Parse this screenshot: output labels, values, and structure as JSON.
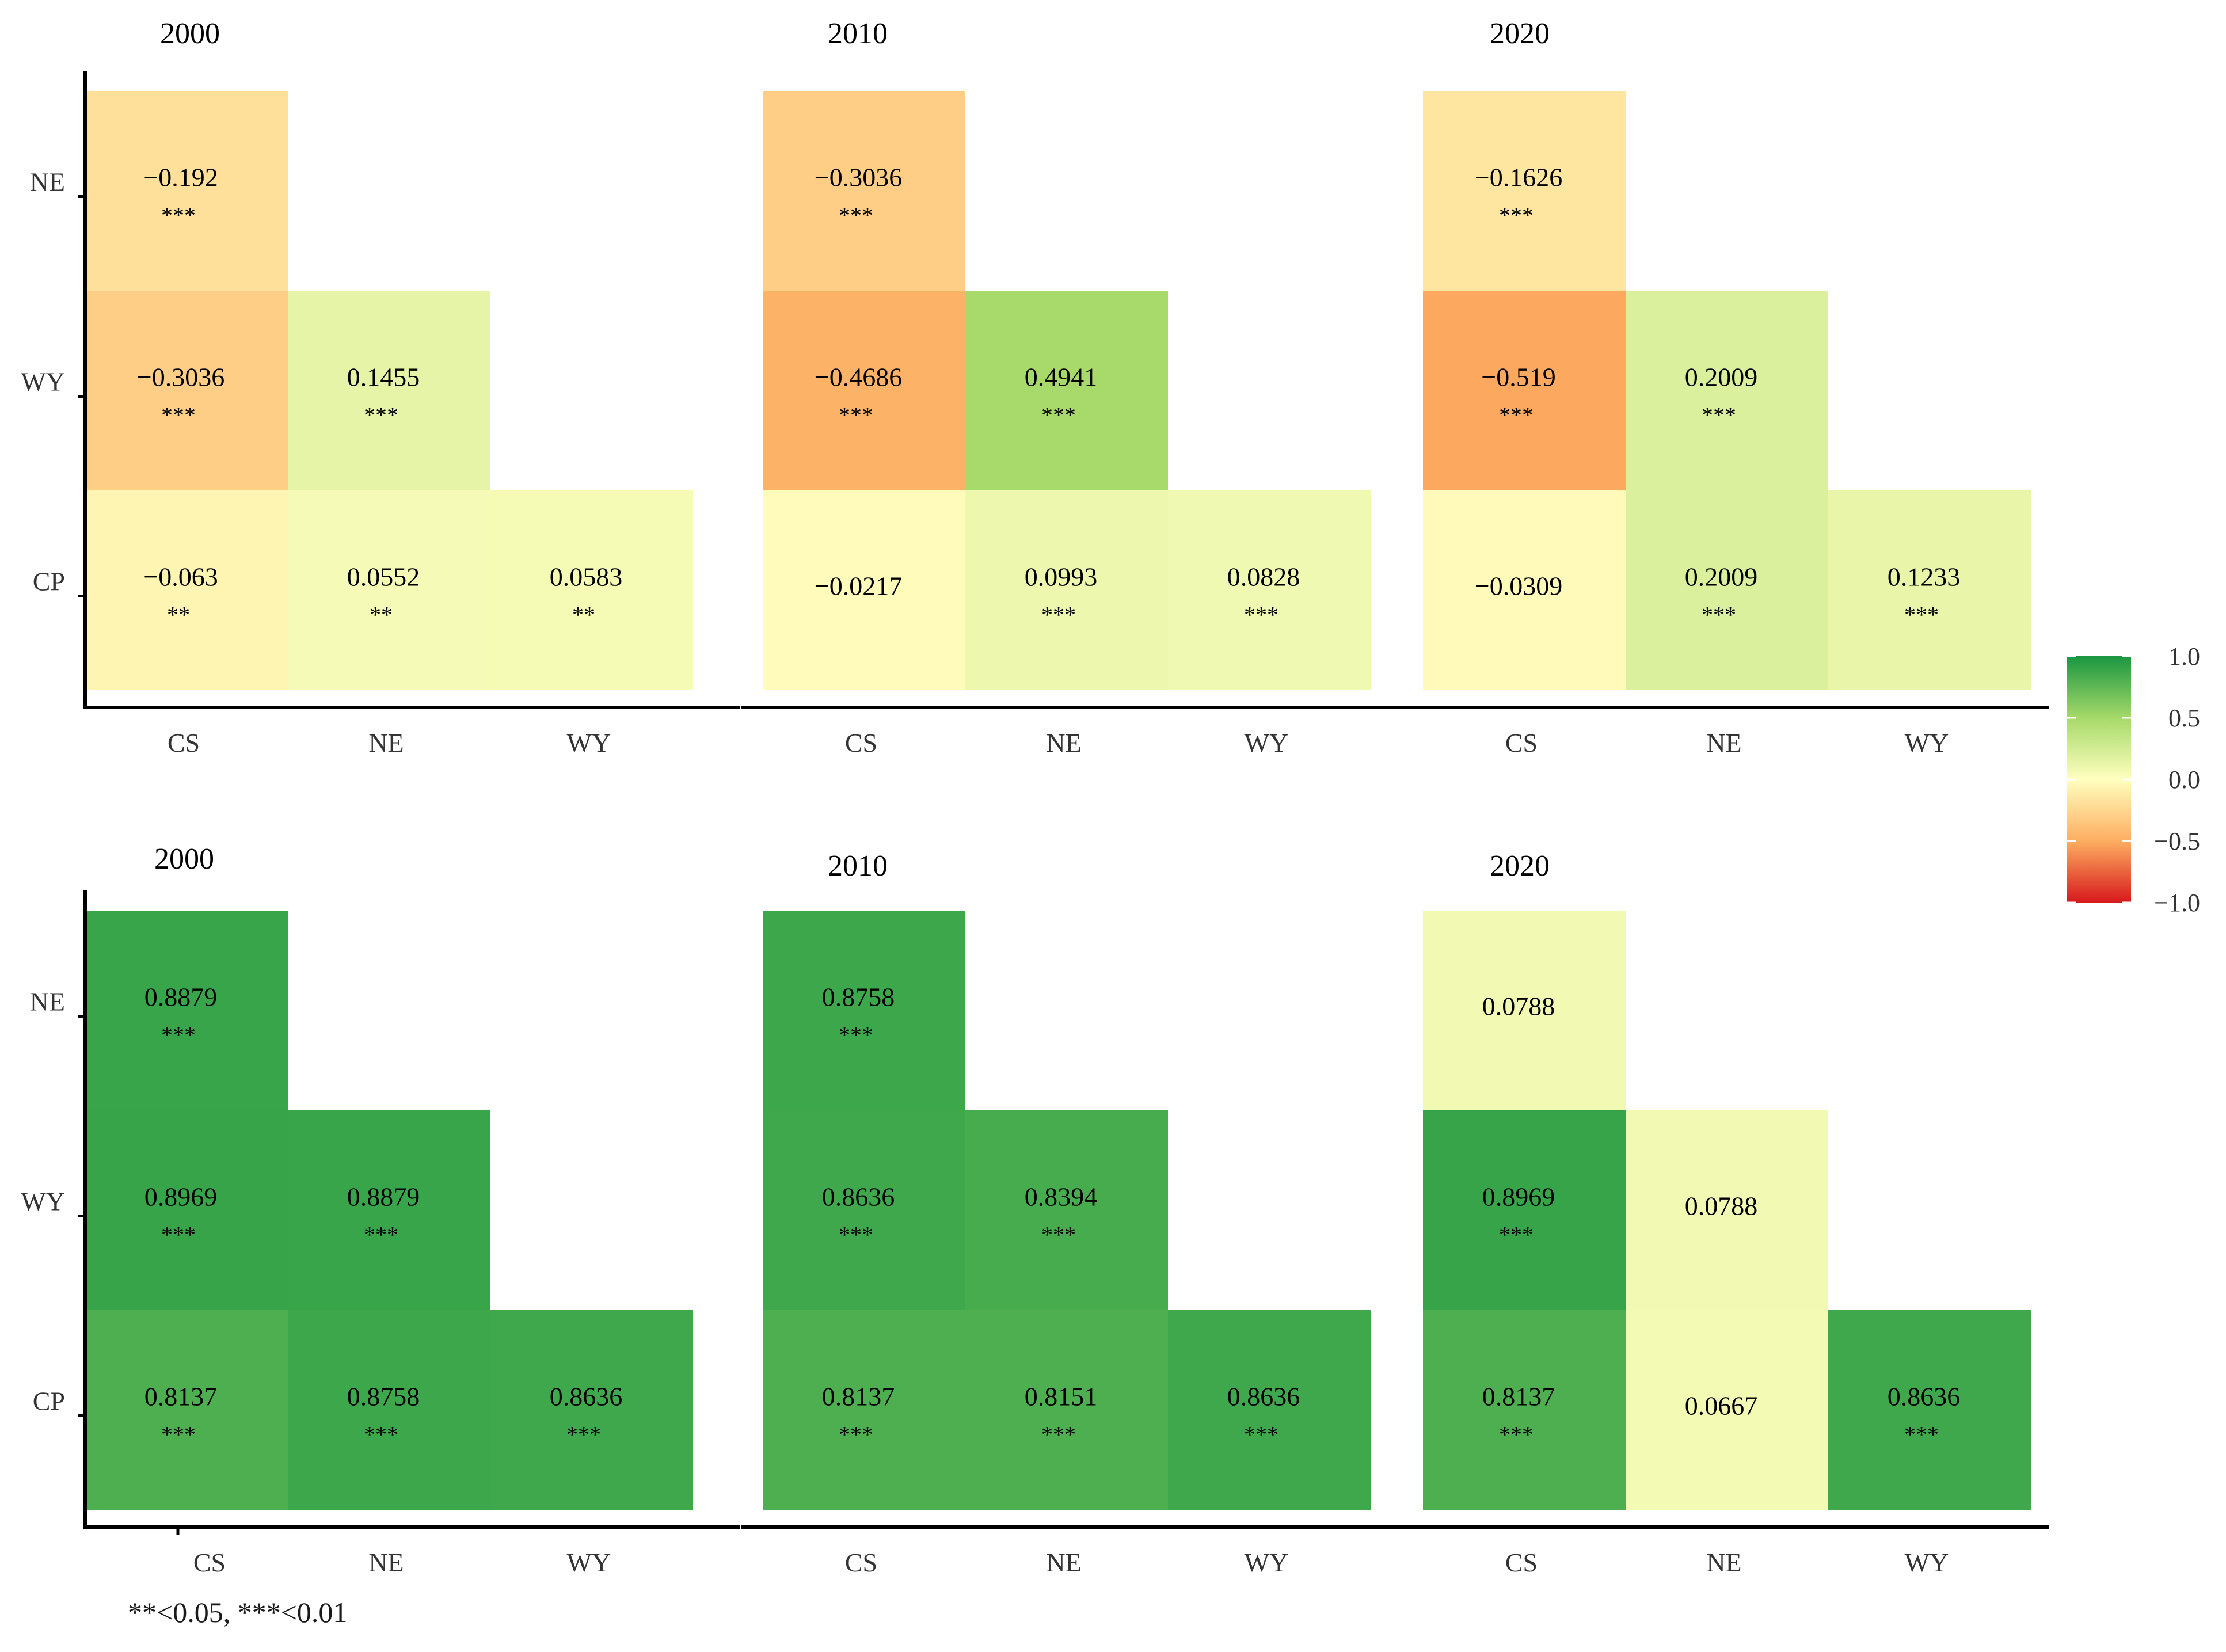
{
  "chart_data": [
    {
      "type": "heatmap",
      "title": "2000",
      "x_categories": [
        "CS",
        "NE",
        "WY"
      ],
      "y_categories": [
        "NE",
        "WY",
        "CP"
      ],
      "cells": [
        {
          "x": "CS",
          "y": "NE",
          "value": -0.192,
          "label": "−0.192",
          "sig": "***"
        },
        {
          "x": "CS",
          "y": "WY",
          "value": -0.3036,
          "label": "−0.3036",
          "sig": "***"
        },
        {
          "x": "NE",
          "y": "WY",
          "value": 0.1455,
          "label": "0.1455",
          "sig": "***"
        },
        {
          "x": "CS",
          "y": "CP",
          "value": -0.063,
          "label": "−0.063",
          "sig": "**"
        },
        {
          "x": "NE",
          "y": "CP",
          "value": 0.0552,
          "label": "0.0552",
          "sig": "**"
        },
        {
          "x": "WY",
          "y": "CP",
          "value": 0.0583,
          "label": "0.0583",
          "sig": "**"
        }
      ]
    },
    {
      "type": "heatmap",
      "title": "2010",
      "x_categories": [
        "CS",
        "NE",
        "WY"
      ],
      "y_categories": [
        "NE",
        "WY",
        "CP"
      ],
      "cells": [
        {
          "x": "CS",
          "y": "NE",
          "value": -0.3036,
          "label": "−0.3036",
          "sig": "***"
        },
        {
          "x": "CS",
          "y": "WY",
          "value": -0.4686,
          "label": "−0.4686",
          "sig": "***"
        },
        {
          "x": "NE",
          "y": "WY",
          "value": 0.4941,
          "label": "0.4941",
          "sig": "***"
        },
        {
          "x": "CS",
          "y": "CP",
          "value": -0.0217,
          "label": "−0.0217",
          "sig": ""
        },
        {
          "x": "NE",
          "y": "CP",
          "value": 0.0993,
          "label": "0.0993",
          "sig": "***"
        },
        {
          "x": "WY",
          "y": "CP",
          "value": 0.0828,
          "label": "0.0828",
          "sig": "***"
        }
      ]
    },
    {
      "type": "heatmap",
      "title": "2020",
      "x_categories": [
        "CS",
        "NE",
        "WY"
      ],
      "y_categories": [
        "NE",
        "WY",
        "CP"
      ],
      "cells": [
        {
          "x": "CS",
          "y": "NE",
          "value": -0.1626,
          "label": "−0.1626",
          "sig": "***"
        },
        {
          "x": "CS",
          "y": "WY",
          "value": -0.519,
          "label": "−0.519",
          "sig": "***"
        },
        {
          "x": "NE",
          "y": "WY",
          "value": 0.2009,
          "label": "0.2009",
          "sig": "***"
        },
        {
          "x": "CS",
          "y": "CP",
          "value": -0.0309,
          "label": "−0.0309",
          "sig": ""
        },
        {
          "x": "NE",
          "y": "CP",
          "value": 0.2009,
          "label": "0.2009",
          "sig": "***"
        },
        {
          "x": "WY",
          "y": "CP",
          "value": 0.1233,
          "label": "0.1233",
          "sig": "***"
        }
      ]
    },
    {
      "type": "heatmap",
      "title": "2000",
      "x_categories": [
        "CS",
        "NE",
        "WY"
      ],
      "y_categories": [
        "NE",
        "WY",
        "CP"
      ],
      "cells": [
        {
          "x": "CS",
          "y": "NE",
          "value": 0.8879,
          "label": "0.8879",
          "sig": "***"
        },
        {
          "x": "CS",
          "y": "WY",
          "value": 0.8969,
          "label": "0.8969",
          "sig": "***"
        },
        {
          "x": "NE",
          "y": "WY",
          "value": 0.8879,
          "label": "0.8879",
          "sig": "***"
        },
        {
          "x": "CS",
          "y": "CP",
          "value": 0.8137,
          "label": "0.8137",
          "sig": "***"
        },
        {
          "x": "NE",
          "y": "CP",
          "value": 0.8758,
          "label": "0.8758",
          "sig": "***"
        },
        {
          "x": "WY",
          "y": "CP",
          "value": 0.8636,
          "label": "0.8636",
          "sig": "***"
        }
      ]
    },
    {
      "type": "heatmap",
      "title": "2010",
      "x_categories": [
        "CS",
        "NE",
        "WY"
      ],
      "y_categories": [
        "NE",
        "WY",
        "CP"
      ],
      "cells": [
        {
          "x": "CS",
          "y": "NE",
          "value": 0.8758,
          "label": "0.8758",
          "sig": "***"
        },
        {
          "x": "CS",
          "y": "WY",
          "value": 0.8636,
          "label": "0.8636",
          "sig": "***"
        },
        {
          "x": "NE",
          "y": "WY",
          "value": 0.8394,
          "label": "0.8394",
          "sig": "***"
        },
        {
          "x": "CS",
          "y": "CP",
          "value": 0.8137,
          "label": "0.8137",
          "sig": "***"
        },
        {
          "x": "NE",
          "y": "CP",
          "value": 0.8151,
          "label": "0.8151",
          "sig": "***"
        },
        {
          "x": "WY",
          "y": "CP",
          "value": 0.8636,
          "label": "0.8636",
          "sig": "***"
        }
      ]
    },
    {
      "type": "heatmap",
      "title": "2020",
      "x_categories": [
        "CS",
        "NE",
        "WY"
      ],
      "y_categories": [
        "NE",
        "WY",
        "CP"
      ],
      "cells": [
        {
          "x": "CS",
          "y": "NE",
          "value": 0.0788,
          "label": "0.0788",
          "sig": ""
        },
        {
          "x": "CS",
          "y": "WY",
          "value": 0.8969,
          "label": "0.8969",
          "sig": "***"
        },
        {
          "x": "NE",
          "y": "WY",
          "value": 0.0788,
          "label": "0.0788",
          "sig": ""
        },
        {
          "x": "CS",
          "y": "CP",
          "value": 0.8137,
          "label": "0.8137",
          "sig": "***"
        },
        {
          "x": "NE",
          "y": "CP",
          "value": 0.0667,
          "label": "0.0667",
          "sig": ""
        },
        {
          "x": "WY",
          "y": "CP",
          "value": 0.8636,
          "label": "0.8636",
          "sig": "***"
        }
      ]
    }
  ],
  "colorbar": {
    "min": -1.0,
    "max": 1.0,
    "ticks": [
      "1.0",
      "0.5",
      "0.0",
      "−0.5",
      "−1.0"
    ],
    "tick_values": [
      1.0,
      0.5,
      0.0,
      -0.5,
      -1.0
    ],
    "colors": [
      "#1a9641",
      "#a6d96a",
      "#ffffbf",
      "#fdae61",
      "#d7191c"
    ]
  },
  "footnote": "**<0.05, ***<0.01"
}
